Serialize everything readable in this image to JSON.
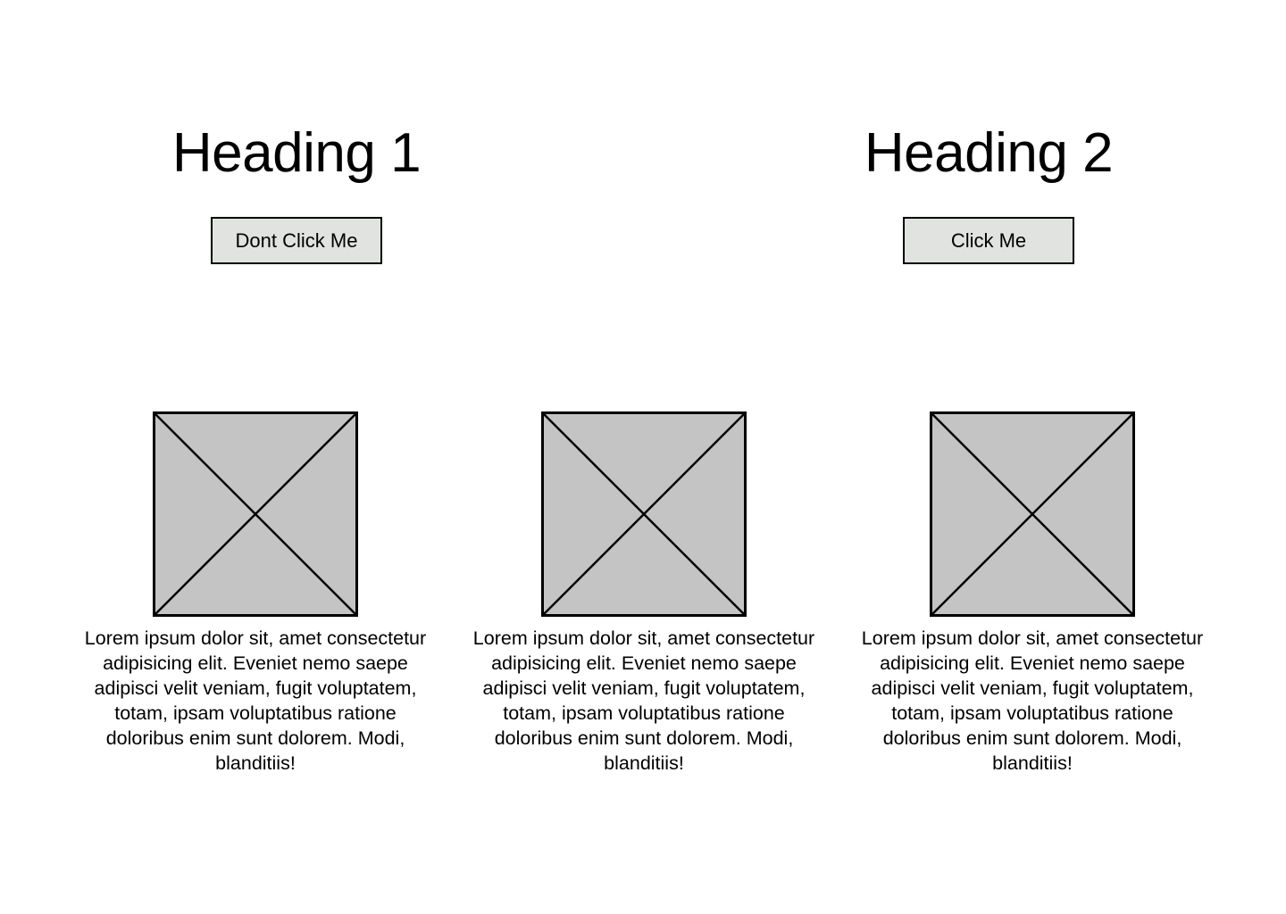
{
  "sections": [
    {
      "heading": "Heading 1",
      "button_label": "Dont Click Me"
    },
    {
      "heading": "Heading 2",
      "button_label": "Click Me"
    }
  ],
  "cards": [
    {
      "icon": "image-placeholder-icon",
      "text": "Lorem ipsum dolor sit, amet consectetur adipisicing elit. Eveniet nemo saepe adipisci velit veniam, fugit voluptatem, totam, ipsam voluptatibus ratione doloribus enim sunt dolorem. Modi, blanditiis!"
    },
    {
      "icon": "image-placeholder-icon",
      "text": "Lorem ipsum dolor sit, amet consectetur adipisicing elit. Eveniet nemo saepe adipisci velit veniam, fugit voluptatem, totam, ipsam voluptatibus ratione doloribus enim sunt dolorem. Modi, blanditiis!"
    },
    {
      "icon": "image-placeholder-icon",
      "text": "Lorem ipsum dolor sit, amet consectetur adipisicing elit. Eveniet nemo saepe adipisci velit veniam, fugit voluptatem, totam, ipsam voluptatibus ratione doloribus enim sunt dolorem. Modi, blanditiis!"
    }
  ],
  "colors": {
    "button_background": "#e0e3e0",
    "placeholder_fill": "#c4c4c4",
    "stroke": "#000000"
  }
}
